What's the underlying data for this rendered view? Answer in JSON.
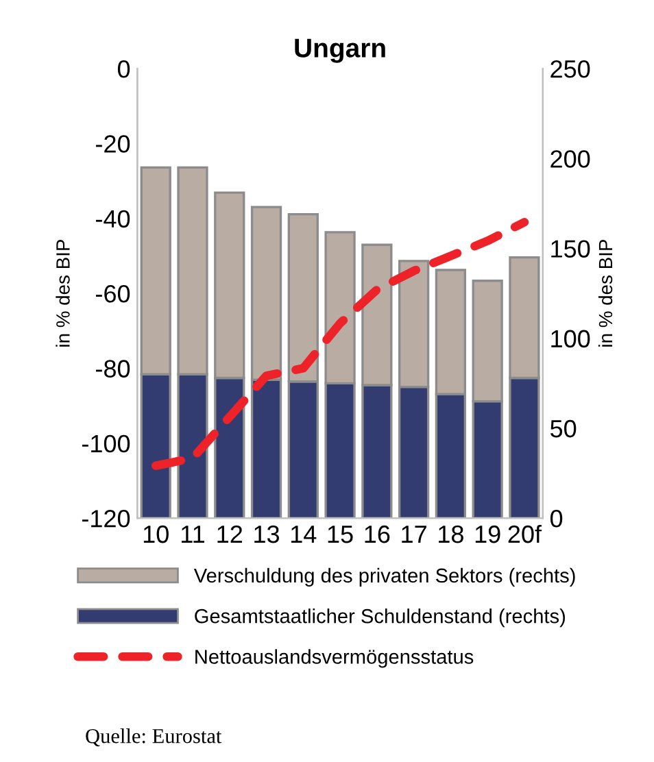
{
  "chart_data": {
    "type": "bar",
    "title": "Ungarn",
    "ylabel": "in % des BIP",
    "y2label": "in % des BIP",
    "categories": [
      "10",
      "11",
      "12",
      "13",
      "14",
      "15",
      "16",
      "17",
      "18",
      "19",
      "20f"
    ],
    "stacked": true,
    "series": [
      {
        "name": "Gesamtstaatlicher Schuldenstand (rechts)",
        "color": "#333c70",
        "axis": "y2",
        "values": [
          80,
          80,
          78,
          77,
          76,
          75,
          74,
          73,
          69,
          65,
          78
        ]
      },
      {
        "name": "Verschuldung des privaten Sektors (rechts)",
        "color": "#b9aca3",
        "axis": "y2",
        "values": [
          115,
          115,
          103,
          96,
          93,
          84,
          78,
          70,
          69,
          67,
          67
        ]
      },
      {
        "name": "Nettoauslandsvermögensstatus",
        "type": "line",
        "color": "#ee2229",
        "line_style": "dashed",
        "values": [
          -106,
          -104,
          -93,
          -82,
          -80,
          -68,
          -59,
          -54,
          -50,
          -46,
          -41
        ]
      }
    ],
    "ylim": [
      -120,
      0
    ],
    "yticks": [
      -120,
      -100,
      -80,
      -60,
      -40,
      -20,
      0
    ],
    "y2lim": [
      0,
      250
    ],
    "y2ticks": [
      0,
      50,
      100,
      150,
      200,
      250
    ],
    "grid": false,
    "legend": "bottom",
    "annotations": [
      "Quelle: Eurostat"
    ]
  }
}
